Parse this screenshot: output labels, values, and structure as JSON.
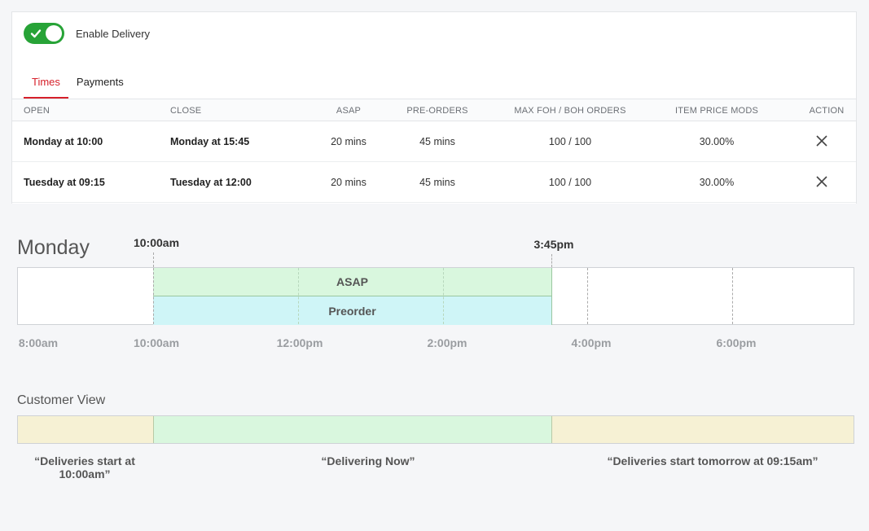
{
  "delivery": {
    "enabled": true,
    "label": "Enable Delivery",
    "accent_color": "#27a337"
  },
  "tabs": [
    {
      "label": "Times",
      "active": true
    },
    {
      "label": "Payments",
      "active": false
    }
  ],
  "table": {
    "headers": [
      "OPEN",
      "CLOSE",
      "ASAP",
      "PRE-ORDERS",
      "MAX FOH / BOH ORDERS",
      "ITEM PRICE MODS",
      "ACTION"
    ],
    "rows": [
      {
        "open": "Monday at 10:00",
        "close": "Monday at 15:45",
        "asap": "20 mins",
        "preorders": "45 mins",
        "max_orders": "100 / 100",
        "price_mods": "30.00%",
        "action_icon": "close-icon"
      },
      {
        "open": "Tuesday at 09:15",
        "close": "Tuesday at 12:00",
        "asap": "20 mins",
        "preorders": "45 mins",
        "max_orders": "100 / 100",
        "price_mods": "30.00%",
        "action_icon": "close-icon"
      }
    ]
  },
  "timeline": {
    "day": "Monday",
    "start_marker": "10:00am",
    "end_marker": "3:45pm",
    "bands": {
      "asap": "ASAP",
      "preorder": "Preorder"
    },
    "ticks": [
      "8:00am",
      "10:00am",
      "12:00pm",
      "2:00pm",
      "4:00pm",
      "6:00pm"
    ]
  },
  "customer_view": {
    "title": "Customer View",
    "labels": {
      "before_line1": "“Deliveries start at",
      "before_line2": "10:00am”",
      "during": "“Delivering Now”",
      "after": "“Deliveries start tomorrow at 09:15am”"
    },
    "colors": {
      "closed": "#f6f1d4",
      "open": "#d9f7de"
    }
  }
}
